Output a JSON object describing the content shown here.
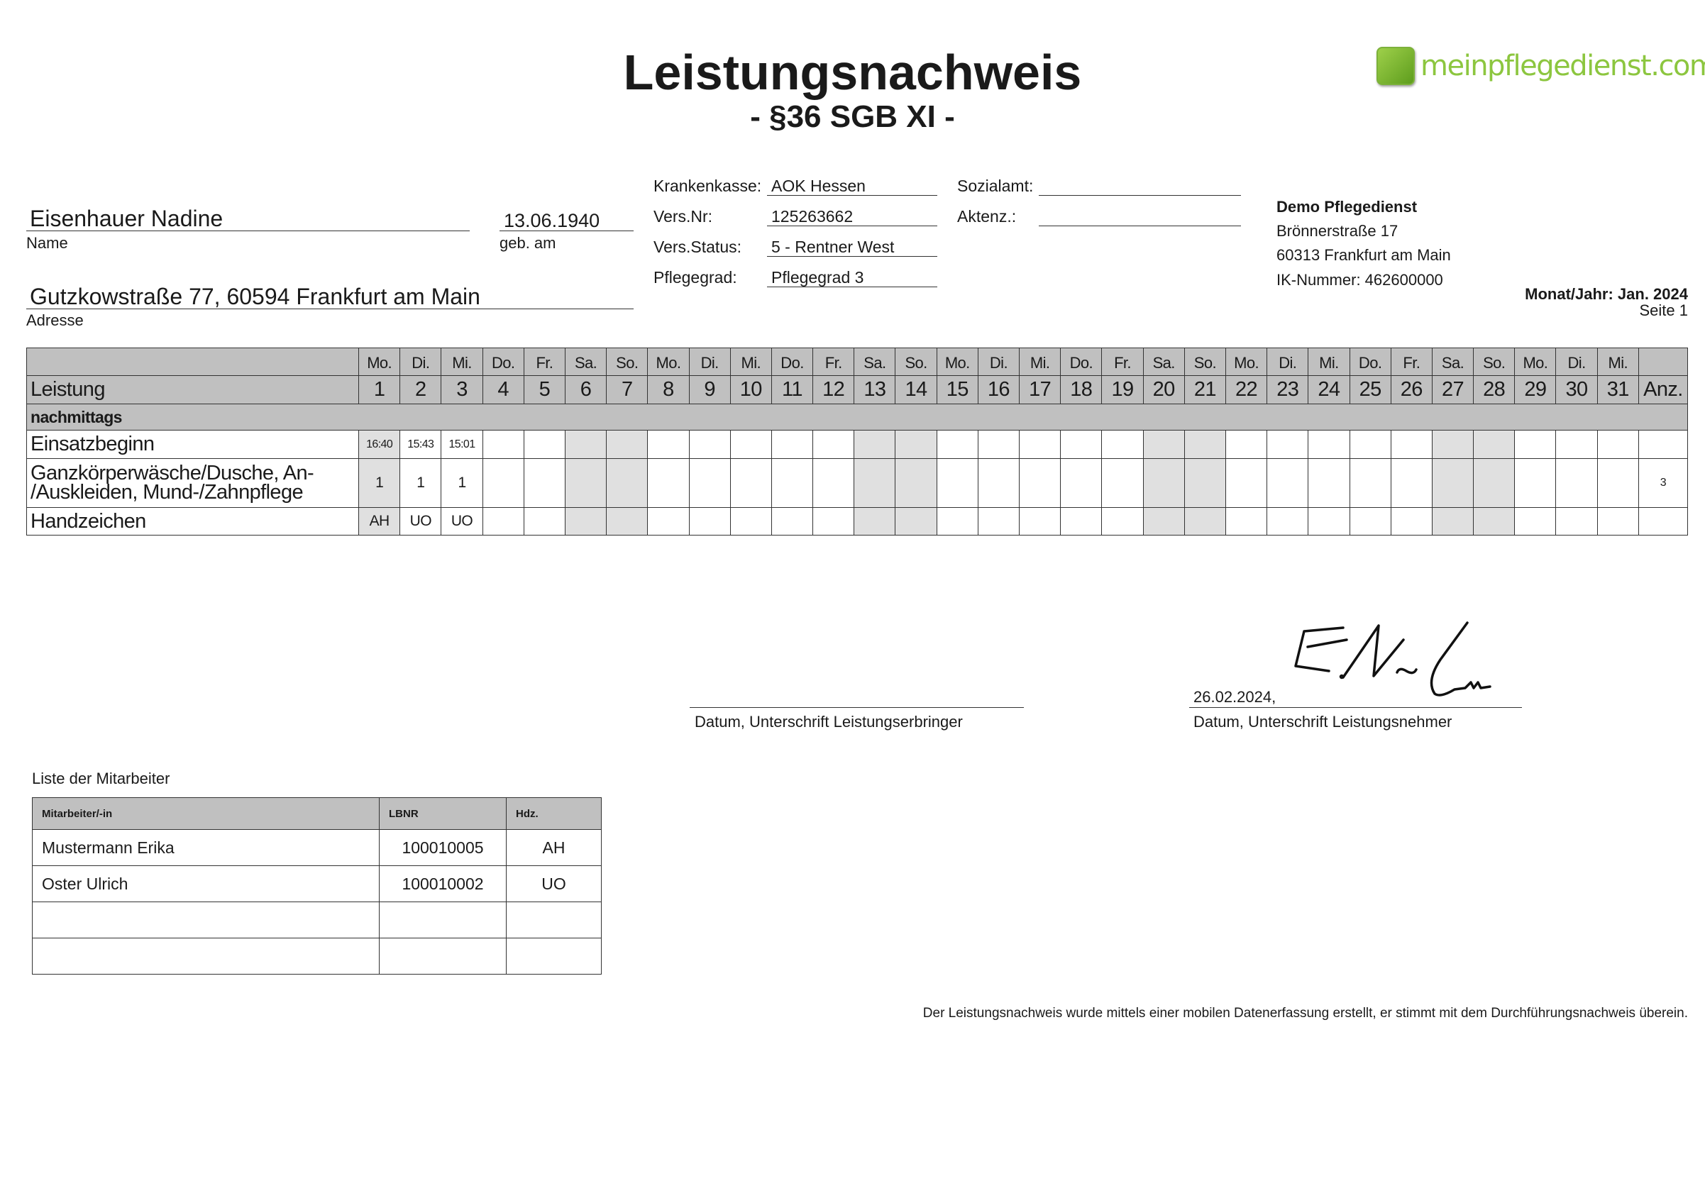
{
  "header": {
    "title": "Leistungsnachweis",
    "subtitle": "- §36 SGB XI -",
    "logo_text": "meinpflegedienst.com"
  },
  "patient": {
    "name": "Eisenhauer Nadine",
    "name_label": "Name",
    "birthdate": "13.06.1940",
    "birthdate_label": "geb. am",
    "address": "Gutzkowstraße 77, 60594 Frankfurt am Main",
    "address_label": "Adresse"
  },
  "insurance": {
    "krankenkasse_label": "Krankenkasse:",
    "krankenkasse": "AOK Hessen",
    "versnr_label": "Vers.Nr:",
    "versnr": "125263662",
    "versstatus_label": "Vers.Status:",
    "versstatus": "5 - Rentner West",
    "pflegegrad_label": "Pflegegrad:",
    "pflegegrad": "Pflegegrad 3",
    "sozialamt_label": "Sozialamt:",
    "sozialamt": "",
    "aktenz_label": "Aktenz.:",
    "aktenz": ""
  },
  "provider": {
    "name": "Demo Pflegedienst",
    "street": "Brönnerstraße 17",
    "city": "60313 Frankfurt am Main",
    "ik": "IK-Nummer: 462600000"
  },
  "period": {
    "month_year": "Monat/Jahr: Jan. 2024",
    "page": "Seite 1"
  },
  "table": {
    "leistung_label": "Leistung",
    "anz_label": "Anz.",
    "weekdays": [
      "Mo.",
      "Di.",
      "Mi.",
      "Do.",
      "Fr.",
      "Sa.",
      "So.",
      "Mo.",
      "Di.",
      "Mi.",
      "Do.",
      "Fr.",
      "Sa.",
      "So.",
      "Mo.",
      "Di.",
      "Mi.",
      "Do.",
      "Fr.",
      "Sa.",
      "So.",
      "Mo.",
      "Di.",
      "Mi.",
      "Do.",
      "Fr.",
      "Sa.",
      "So.",
      "Mo.",
      "Di.",
      "Mi."
    ],
    "days": [
      "1",
      "2",
      "3",
      "4",
      "5",
      "6",
      "7",
      "8",
      "9",
      "10",
      "11",
      "12",
      "13",
      "14",
      "15",
      "16",
      "17",
      "18",
      "19",
      "20",
      "21",
      "22",
      "23",
      "24",
      "25",
      "26",
      "27",
      "28",
      "29",
      "30",
      "31"
    ],
    "shaded_days": [
      1,
      6,
      7,
      13,
      14,
      20,
      21,
      27,
      28
    ],
    "section": "nachmittags",
    "rows": [
      {
        "label": "Einsatzbeginn",
        "values": {
          "1": "16:40",
          "2": "15:43",
          "3": "15:01"
        },
        "anz": "",
        "small": true
      },
      {
        "label": "Ganzkörperwäsche/Dusche, An-/Auskleiden, Mund-/Zahnpflege",
        "label_lines": [
          "Ganzkörperwäsche/Dusche, An-",
          "/Auskleiden, Mund-/Zahnpflege"
        ],
        "values": {
          "1": "1",
          "2": "1",
          "3": "1"
        },
        "anz": "3"
      },
      {
        "label": "Handzeichen",
        "values": {
          "1": "AH",
          "2": "UO",
          "3": "UO"
        },
        "anz": ""
      }
    ]
  },
  "signatures": {
    "provider_label": "Datum, Unterschrift Leistungserbringer",
    "recipient_date": "26.02.2024,",
    "recipient_label": "Datum, Unterschrift Leistungsnehmer",
    "recipient_signature": "E.N."
  },
  "employees": {
    "title": "Liste der Mitarbeiter",
    "headers": [
      "Mitarbeiter/-in",
      "LBNR",
      "Hdz."
    ],
    "rows": [
      [
        "Mustermann Erika",
        "100010005",
        "AH"
      ],
      [
        "Oster Ulrich",
        "100010002",
        "UO"
      ],
      [
        "",
        "",
        ""
      ],
      [
        "",
        "",
        ""
      ]
    ]
  },
  "footer": "Der Leistungsnachweis wurde mittels einer mobilen Datenerfassung erstellt, er stimmt mit dem Durchführungsnachweis überein."
}
